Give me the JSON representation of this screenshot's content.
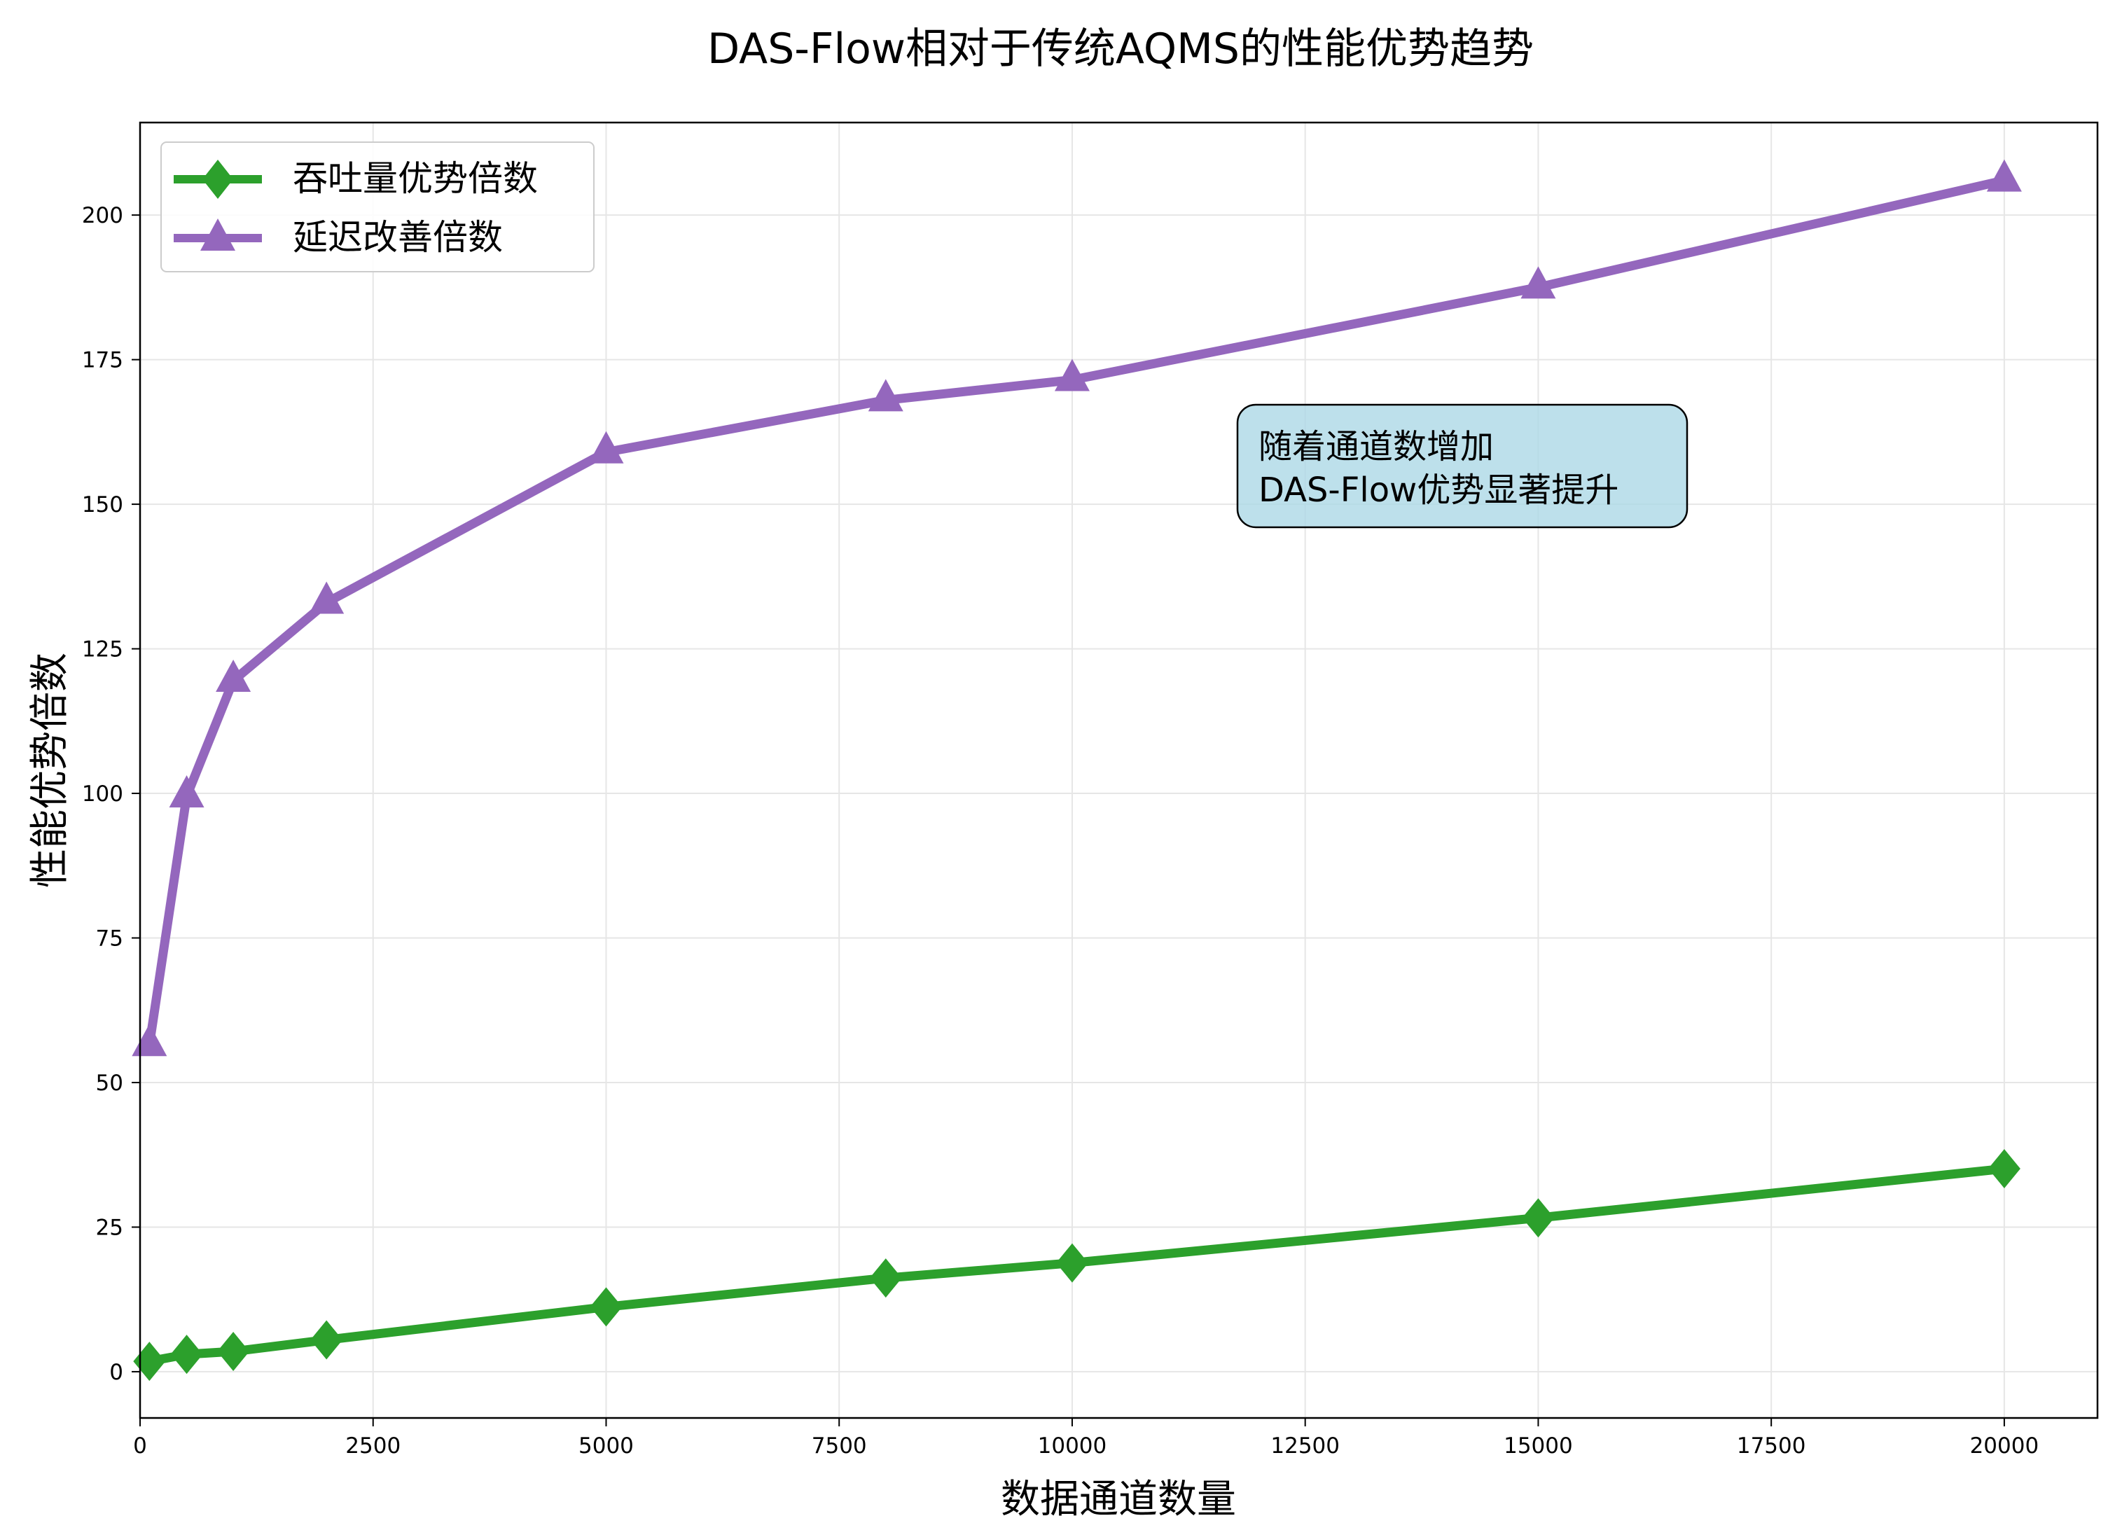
{
  "chart_data": {
    "type": "line",
    "title": "DAS-Flow相对于传统AQMS的性能优势趋势",
    "xlabel": "数据通道数量",
    "ylabel": "性能优势倍数",
    "xlim": [
      0,
      21000
    ],
    "ylim": [
      -8,
      216
    ],
    "xticks": [
      0,
      2500,
      5000,
      7500,
      10000,
      12500,
      15000,
      17500,
      20000
    ],
    "yticks": [
      0,
      25,
      50,
      75,
      100,
      125,
      150,
      175,
      200
    ],
    "grid": true,
    "legend_position": "top-left",
    "x": [
      100,
      500,
      1000,
      2000,
      5000,
      8000,
      10000,
      15000,
      20000
    ],
    "series": [
      {
        "name": "吞吐量优势倍数",
        "color": "#2ca02c",
        "marker": "diamond",
        "values": [
          1.8,
          3.0,
          3.5,
          5.5,
          11.2,
          16.2,
          18.8,
          26.6,
          35.1
        ]
      },
      {
        "name": "延迟改善倍数",
        "color": "#9467bd",
        "marker": "triangle",
        "values": [
          56.5,
          99.5,
          119.5,
          133,
          159,
          168,
          171.5,
          187.5,
          206
        ]
      }
    ],
    "annotation": {
      "lines": [
        "随着通道数增加",
        "DAS-Flow优势显著提升"
      ],
      "background": "#add8e6"
    }
  }
}
